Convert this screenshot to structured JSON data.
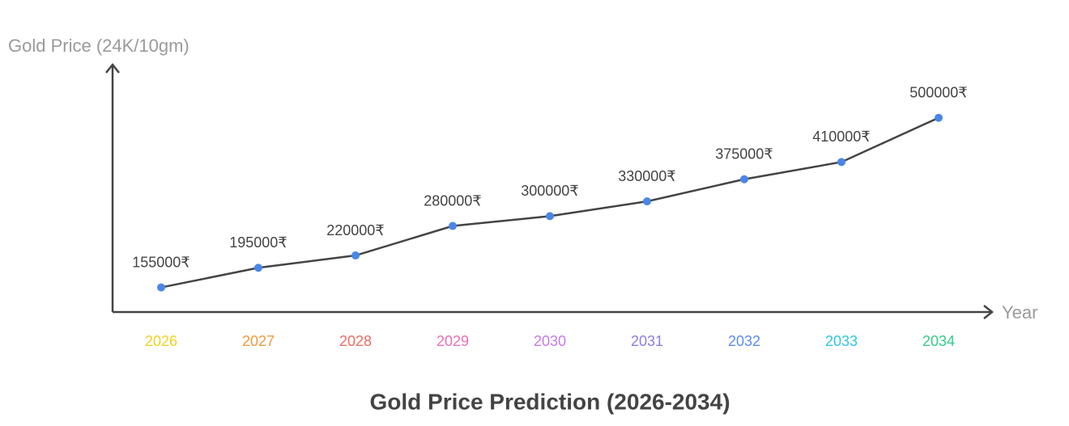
{
  "chart_data": {
    "type": "line",
    "title": "Gold Price Prediction (2026-2034)",
    "y_label": "Gold Price (24K/10gm)",
    "x_label": "Year",
    "categories": [
      "2026",
      "2027",
      "2028",
      "2029",
      "2030",
      "2031",
      "2032",
      "2033",
      "2034"
    ],
    "category_colors": [
      "#f1d21e",
      "#f39a3c",
      "#ee6b63",
      "#ee6fb8",
      "#c77ae6",
      "#8f7be8",
      "#5b8def",
      "#2fc6e3",
      "#33cc88"
    ],
    "values": [
      155000,
      195000,
      220000,
      280000,
      300000,
      330000,
      375000,
      410000,
      500000
    ],
    "value_labels": [
      "155000₹",
      "195000₹",
      "220000₹",
      "280000₹",
      "300000₹",
      "330000₹",
      "375000₹",
      "410000₹",
      "500000₹"
    ],
    "ylim": [
      105000,
      608000
    ],
    "line_color": "#444444",
    "marker_color": "#4a86e8"
  }
}
